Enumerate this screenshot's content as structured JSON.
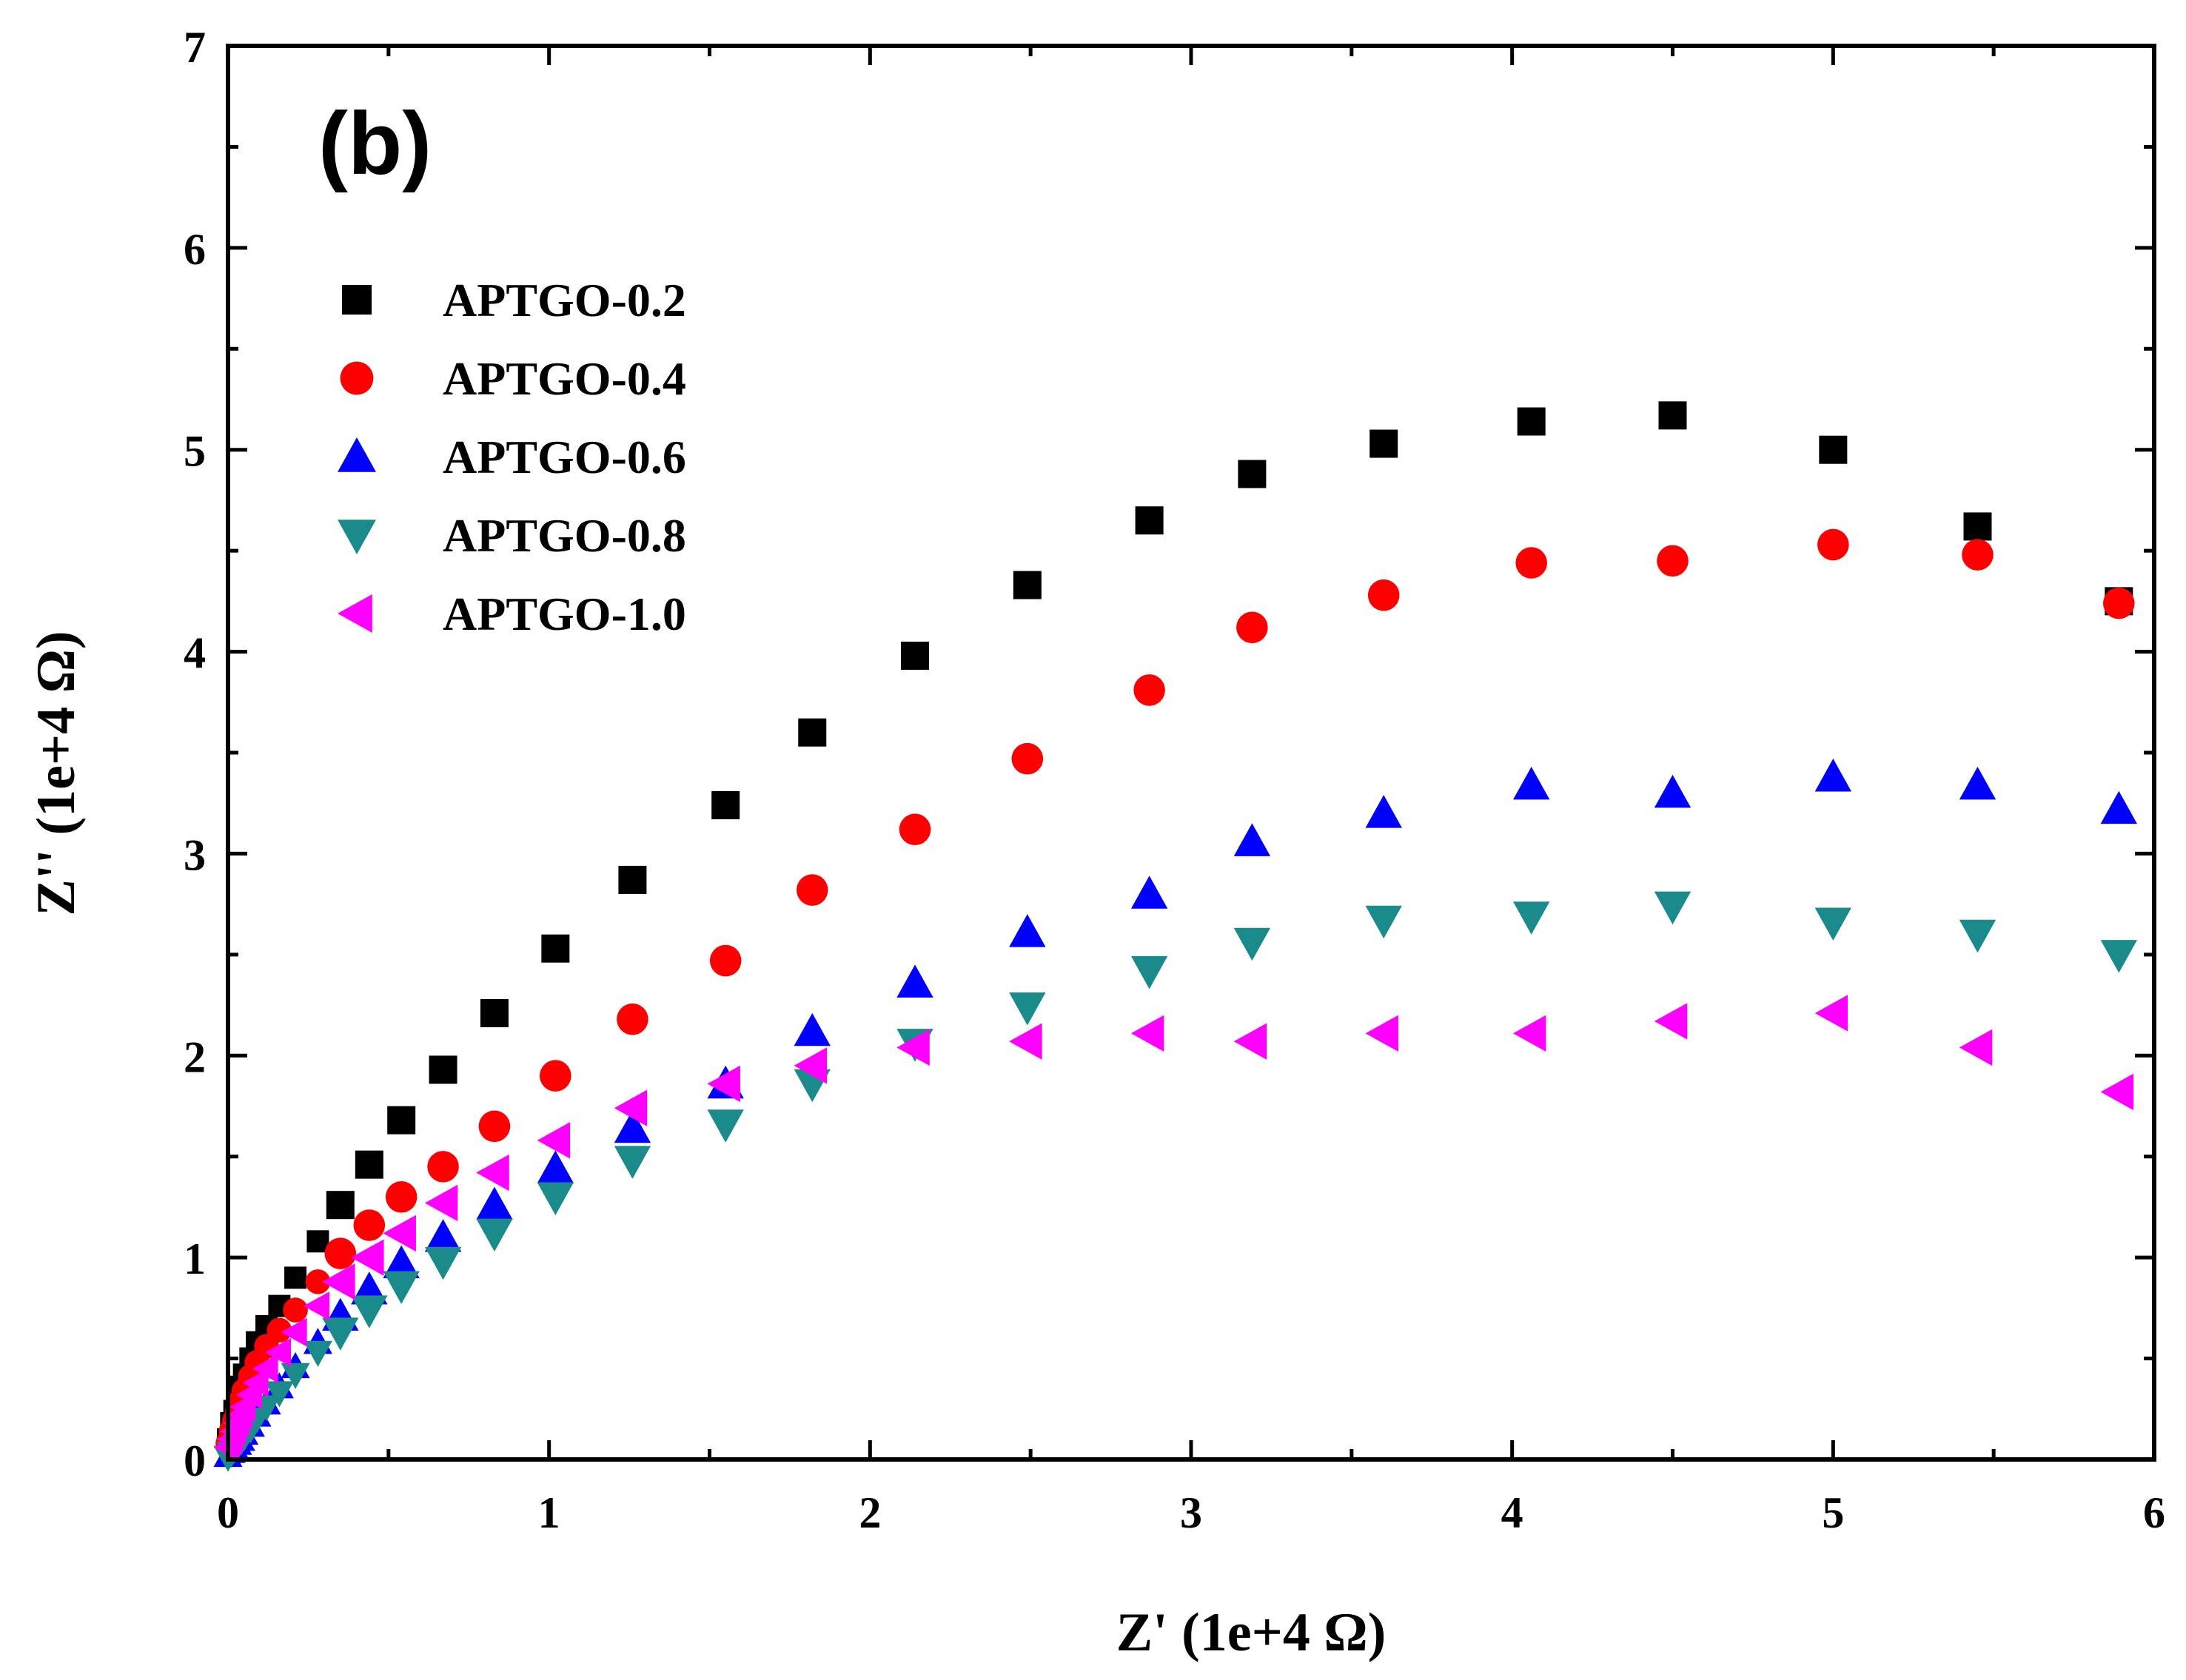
{
  "chart_data": {
    "type": "scatter",
    "panel_label": "(b)",
    "xlabel": "Z' (1e+4 Ω)",
    "ylabel": "Z'' (1e+4 Ω)",
    "xlim": [
      0,
      6
    ],
    "ylim": [
      0,
      7
    ],
    "x_ticks": [
      "0",
      "1",
      "2",
      "3",
      "4",
      "5",
      "6"
    ],
    "y_ticks": [
      "0",
      "1",
      "2",
      "3",
      "4",
      "5",
      "6",
      "7"
    ],
    "legend_position": "top-left",
    "series": [
      {
        "name": "APTGO-0.2",
        "marker": "square",
        "color": "#000000",
        "x": [
          0.0,
          0.01,
          0.02,
          0.03,
          0.04,
          0.05,
          0.07,
          0.09,
          0.12,
          0.16,
          0.21,
          0.28,
          0.35,
          0.44,
          0.54,
          0.67,
          0.83,
          1.02,
          1.26,
          1.55,
          1.82,
          2.14,
          2.49,
          2.87,
          3.19,
          3.6,
          4.06,
          4.5,
          5.0,
          5.45,
          5.89
        ],
        "y": [
          0.1,
          0.18,
          0.24,
          0.3,
          0.36,
          0.42,
          0.5,
          0.58,
          0.66,
          0.76,
          0.9,
          1.08,
          1.26,
          1.46,
          1.68,
          1.93,
          2.21,
          2.53,
          2.87,
          3.24,
          3.6,
          3.98,
          4.33,
          4.65,
          4.88,
          5.03,
          5.14,
          5.17,
          5.0,
          4.62,
          4.25
        ]
      },
      {
        "name": "APTGO-0.4",
        "marker": "circle",
        "color": "#ff0000",
        "x": [
          0.0,
          0.01,
          0.02,
          0.03,
          0.04,
          0.05,
          0.07,
          0.09,
          0.12,
          0.16,
          0.21,
          0.28,
          0.35,
          0.44,
          0.54,
          0.67,
          0.83,
          1.02,
          1.26,
          1.55,
          1.82,
          2.14,
          2.49,
          2.87,
          3.19,
          3.6,
          4.06,
          4.5,
          5.0,
          5.45,
          5.89
        ],
        "y": [
          0.08,
          0.14,
          0.19,
          0.24,
          0.29,
          0.34,
          0.41,
          0.48,
          0.56,
          0.64,
          0.74,
          0.88,
          1.02,
          1.16,
          1.3,
          1.45,
          1.65,
          1.9,
          2.18,
          2.47,
          2.82,
          3.12,
          3.47,
          3.81,
          4.12,
          4.28,
          4.44,
          4.45,
          4.53,
          4.48,
          4.24
        ]
      },
      {
        "name": "APTGO-0.6",
        "marker": "triangle-up",
        "color": "#0000ff",
        "x": [
          0.0,
          0.01,
          0.02,
          0.03,
          0.04,
          0.05,
          0.07,
          0.09,
          0.12,
          0.16,
          0.21,
          0.28,
          0.35,
          0.44,
          0.54,
          0.67,
          0.83,
          1.02,
          1.26,
          1.55,
          1.82,
          2.14,
          2.49,
          2.87,
          3.19,
          3.6,
          4.06,
          4.5,
          5.0,
          5.45,
          5.89
        ],
        "y": [
          0.02,
          0.04,
          0.06,
          0.08,
          0.1,
          0.13,
          0.17,
          0.22,
          0.28,
          0.36,
          0.46,
          0.58,
          0.71,
          0.84,
          0.97,
          1.1,
          1.26,
          1.44,
          1.64,
          1.86,
          2.12,
          2.36,
          2.61,
          2.8,
          3.06,
          3.2,
          3.34,
          3.3,
          3.38,
          3.34,
          3.22
        ]
      },
      {
        "name": "APTGO-0.8",
        "marker": "triangle-down",
        "color": "#1a8a8a",
        "x": [
          0.0,
          0.01,
          0.02,
          0.03,
          0.04,
          0.05,
          0.07,
          0.09,
          0.12,
          0.16,
          0.21,
          0.28,
          0.35,
          0.44,
          0.54,
          0.67,
          0.83,
          1.02,
          1.26,
          1.55,
          1.82,
          2.14,
          2.49,
          2.87,
          3.19,
          3.6,
          4.06,
          4.5,
          5.0,
          5.45,
          5.89
        ],
        "y": [
          0.01,
          0.03,
          0.05,
          0.07,
          0.09,
          0.11,
          0.15,
          0.2,
          0.26,
          0.33,
          0.42,
          0.53,
          0.63,
          0.74,
          0.86,
          0.98,
          1.12,
          1.3,
          1.48,
          1.66,
          1.86,
          2.06,
          2.24,
          2.42,
          2.56,
          2.67,
          2.69,
          2.74,
          2.66,
          2.6,
          2.5
        ]
      },
      {
        "name": "APTGO-1.0",
        "marker": "triangle-left",
        "color": "#ff00ff",
        "x": [
          0.0,
          0.01,
          0.02,
          0.03,
          0.04,
          0.05,
          0.07,
          0.09,
          0.12,
          0.16,
          0.21,
          0.28,
          0.35,
          0.44,
          0.54,
          0.67,
          0.83,
          1.02,
          1.26,
          1.55,
          1.82,
          2.14,
          2.49,
          2.87,
          3.19,
          3.6,
          4.06,
          4.5,
          5.0,
          5.45,
          5.89
        ],
        "y": [
          0.06,
          0.1,
          0.14,
          0.18,
          0.22,
          0.26,
          0.32,
          0.38,
          0.45,
          0.53,
          0.63,
          0.76,
          0.88,
          1.0,
          1.12,
          1.27,
          1.42,
          1.58,
          1.74,
          1.86,
          1.95,
          2.04,
          2.07,
          2.11,
          2.07,
          2.11,
          2.11,
          2.17,
          2.21,
          2.04,
          1.82
        ]
      }
    ]
  }
}
